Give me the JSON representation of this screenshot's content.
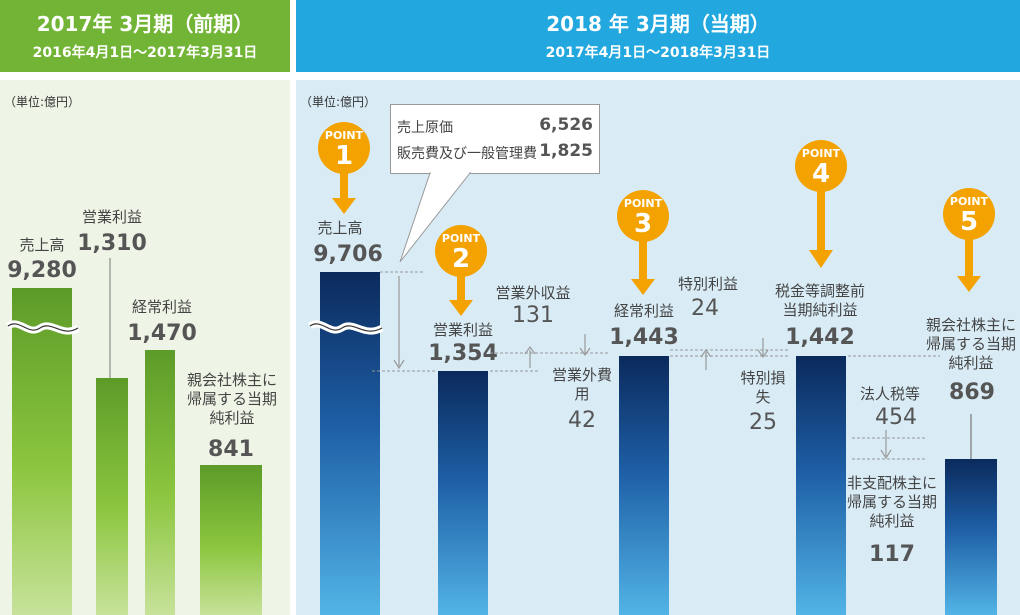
{
  "header": {
    "prev_title": "2017年 3月期（前期）",
    "prev_period": "2016年4月1日〜2017年3月31日",
    "curr_title": "2018 年 3月期（当期）",
    "curr_period": "2017年4月1日〜2018年3月31日"
  },
  "unit_label": "（単位:億円）",
  "callout": {
    "cost_label": "売上原価",
    "cost_value": "6,526",
    "sga_label": "販売費及び一般管理費",
    "sga_value": "1,825"
  },
  "points": [
    {
      "word": "POINT",
      "num": "1"
    },
    {
      "word": "POINT",
      "num": "2"
    },
    {
      "word": "POINT",
      "num": "3"
    },
    {
      "word": "POINT",
      "num": "4"
    },
    {
      "word": "POINT",
      "num": "5"
    }
  ],
  "colors": {
    "prev_accent": "#72b536",
    "curr_accent": "#22a8de",
    "point": "#f3a200"
  },
  "chart_data": [
    {
      "type": "bar",
      "title": "2017年 3月期（前期）",
      "categories": [
        "売上高",
        "営業利益",
        "経常利益",
        "親会社株主に帰属する当期純利益"
      ],
      "values": [
        9280,
        1310,
        1470,
        841
      ],
      "value_labels": [
        "9,280",
        "1,310",
        "1,470",
        "841"
      ],
      "unit": "億円",
      "note": "売上高 bar axis broken"
    },
    {
      "type": "bar",
      "title": "2018 年 3月期（当期）",
      "categories": [
        "売上高",
        "営業利益",
        "経常利益",
        "税金等調整前当期純利益",
        "親会社株主に帰属する当期純利益"
      ],
      "values": [
        9706,
        1354,
        1443,
        1442,
        869
      ],
      "value_labels": [
        "9,706",
        "1,354",
        "1,443",
        "1,442",
        "869"
      ],
      "unit": "億円",
      "adjustments": [
        {
          "label": "営業外収益",
          "value": "131"
        },
        {
          "label": "営業外費用",
          "value": "42"
        },
        {
          "label": "特別利益",
          "value": "24"
        },
        {
          "label": "特別損失",
          "value": "25"
        },
        {
          "label": "法人税等",
          "value": "454"
        },
        {
          "label": "非支配株主に帰属する当期純利益",
          "value": "117"
        }
      ]
    }
  ]
}
